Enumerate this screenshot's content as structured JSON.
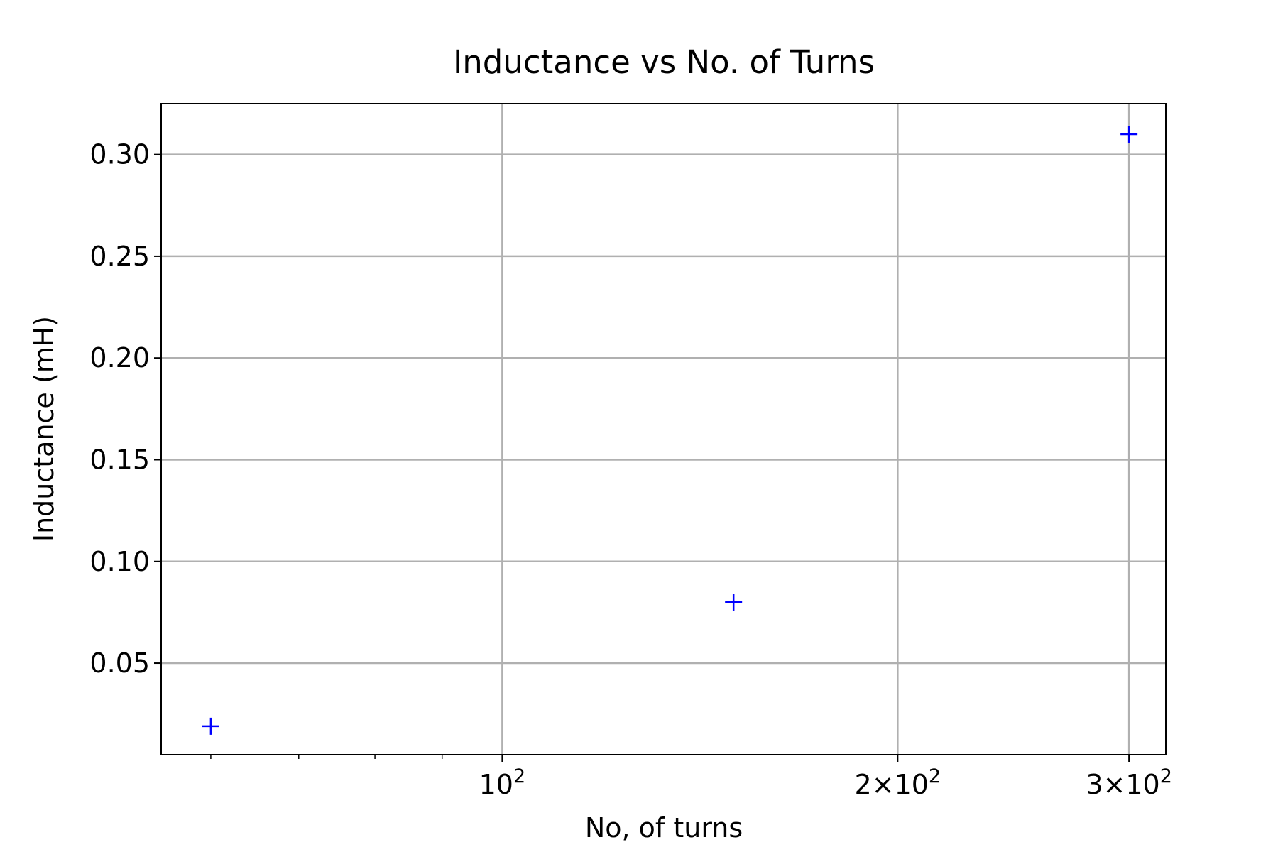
{
  "chart_data": {
    "type": "scatter",
    "title": "Inductance vs No. of Turns",
    "xlabel": "No, of turns",
    "ylabel": "Inductance (mH)",
    "x_scale": "log",
    "xlim": [
      55,
      320
    ],
    "ylim": [
      0.005,
      0.325
    ],
    "grid": true,
    "marker": "+",
    "marker_color": "#0000ff",
    "series": [
      {
        "x": [
          60,
          150,
          300
        ],
        "y": [
          0.019,
          0.08,
          0.31
        ]
      }
    ],
    "x_ticks": [
      {
        "value": 100,
        "mantissa": "",
        "base": "10",
        "exponent": "2"
      },
      {
        "value": 200,
        "mantissa": "2×",
        "base": "10",
        "exponent": "2"
      },
      {
        "value": 300,
        "mantissa": "3×",
        "base": "10",
        "exponent": "2"
      }
    ],
    "x_minor_ticks": [
      60,
      70,
      80,
      90
    ],
    "y_ticks": [
      {
        "value": 0.05,
        "label": "0.05"
      },
      {
        "value": 0.1,
        "label": "0.10"
      },
      {
        "value": 0.15,
        "label": "0.15"
      },
      {
        "value": 0.2,
        "label": "0.20"
      },
      {
        "value": 0.25,
        "label": "0.25"
      },
      {
        "value": 0.3,
        "label": "0.30"
      }
    ]
  }
}
